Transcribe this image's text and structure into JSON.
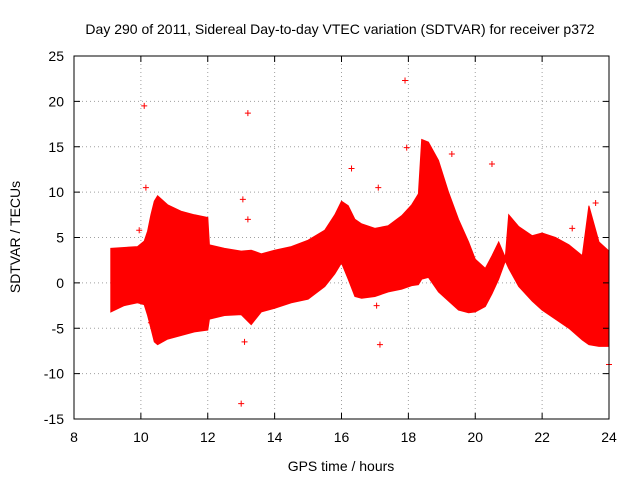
{
  "chart_data": {
    "type": "scatter",
    "title": "Day 290 of 2011, Sidereal Day-to-day VTEC variation (SDTVAR) for receiver p372",
    "xlabel": "GPS time / hours",
    "ylabel": "SDTVAR / TECUs",
    "xlim": [
      8,
      24
    ],
    "ylim": [
      -15,
      25
    ],
    "xticks": [
      8,
      10,
      12,
      14,
      16,
      18,
      20,
      22,
      24
    ],
    "yticks": [
      -15,
      -10,
      -5,
      0,
      5,
      10,
      15,
      20,
      25
    ],
    "xtick_labels": [
      "8",
      "10",
      "12",
      "14",
      "16",
      "18",
      "20",
      "22",
      "24"
    ],
    "ytick_labels": [
      "-15",
      "-10",
      "-5",
      "0",
      "5",
      "10",
      "15",
      "20",
      "25"
    ],
    "grid": true,
    "series_color": "#ff0000",
    "band": {
      "name": "SDTVAR envelope (dense error bars)",
      "x": [
        9.1,
        9.5,
        9.9,
        10.1,
        10.2,
        10.3,
        10.4,
        10.5,
        10.8,
        11.2,
        11.6,
        12.0,
        12.05,
        12.5,
        13.0,
        13.3,
        13.6,
        14.0,
        14.5,
        15.0,
        15.5,
        15.8,
        16.0,
        16.2,
        16.4,
        16.6,
        17.0,
        17.4,
        17.8,
        18.1,
        18.3,
        18.4,
        18.6,
        18.9,
        19.2,
        19.5,
        19.8,
        20.0,
        20.3,
        20.5,
        20.7,
        20.9,
        21.0,
        21.3,
        21.7,
        22.0,
        22.4,
        22.8,
        23.2,
        23.4,
        23.7,
        24.0
      ],
      "upper": [
        3.8,
        3.9,
        4.0,
        4.6,
        5.7,
        7.5,
        9.0,
        9.6,
        8.6,
        7.9,
        7.5,
        7.2,
        4.2,
        3.8,
        3.5,
        3.6,
        3.2,
        3.6,
        4.0,
        4.7,
        5.8,
        7.5,
        9.0,
        8.5,
        7.0,
        6.5,
        6.0,
        6.3,
        7.4,
        8.6,
        9.8,
        15.8,
        15.5,
        13.5,
        10.0,
        7.0,
        4.5,
        2.6,
        1.6,
        3.0,
        4.5,
        2.8,
        7.5,
        6.2,
        5.2,
        5.5,
        5.0,
        4.2,
        3.0,
        8.5,
        4.5,
        3.5
      ],
      "lower": [
        -3.2,
        -2.5,
        -2.2,
        -2.4,
        -3.6,
        -5.0,
        -6.5,
        -6.8,
        -6.2,
        -5.8,
        -5.4,
        -5.2,
        -4.0,
        -3.6,
        -3.5,
        -4.6,
        -3.2,
        -2.8,
        -2.2,
        -1.8,
        -0.4,
        1.0,
        2.2,
        0.4,
        -1.5,
        -1.7,
        -1.5,
        -1.0,
        -0.7,
        -0.3,
        -0.2,
        0.4,
        0.6,
        -1.0,
        -2.0,
        -3.0,
        -3.3,
        -3.2,
        -2.6,
        -1.2,
        0.4,
        2.4,
        1.6,
        -0.4,
        -2.0,
        -3.0,
        -4.0,
        -5.0,
        -6.3,
        -6.8,
        -7.0,
        -7.0
      ]
    },
    "outliers": {
      "x": [
        10.1,
        10.15,
        9.95,
        10.3,
        13.2,
        13.0,
        13.1,
        13.05,
        17.9,
        17.95,
        17.1,
        17.15,
        17.05,
        19.3,
        20.5,
        22.9,
        24.0,
        16.3,
        13.2,
        10.4,
        23.6
      ],
      "y": [
        19.5,
        10.5,
        5.8,
        -4.4,
        18.7,
        -13.3,
        -6.5,
        9.2,
        22.3,
        14.9,
        10.5,
        -6.8,
        -2.5,
        14.2,
        13.1,
        6.0,
        -9.0,
        12.6,
        7.0,
        -4.5,
        8.8
      ]
    }
  }
}
